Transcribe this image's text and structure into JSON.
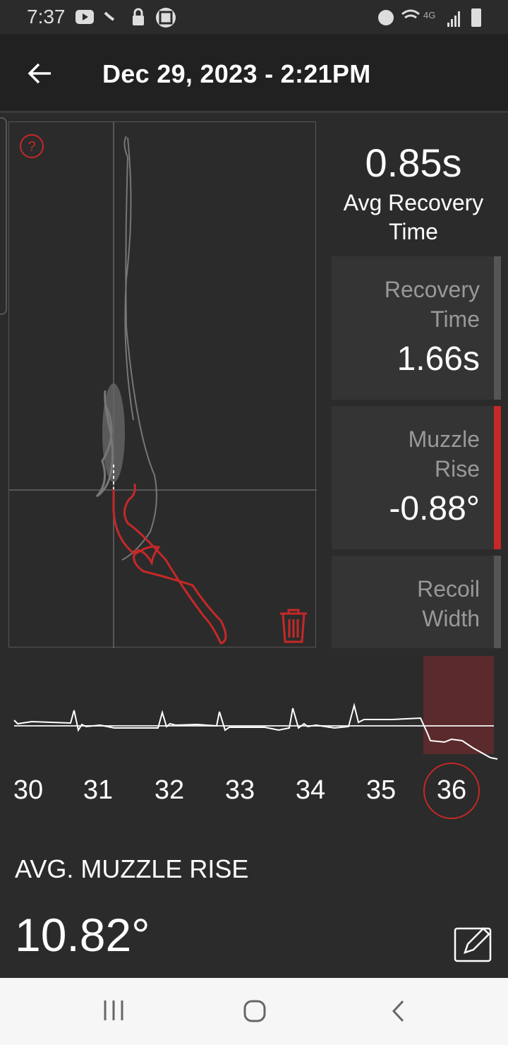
{
  "status_bar": {
    "time": "7:37",
    "icons": [
      "youtube-icon",
      "wifi-call-icon",
      "lock-icon",
      "screenshot-icon",
      "alarm-icon",
      "wifi-icon",
      "4g-lte-icon",
      "signal-icon",
      "battery-icon"
    ]
  },
  "header": {
    "title": "Dec 29, 2023 - 2:21PM",
    "back_icon": "arrow-left-icon"
  },
  "summary": {
    "avg_recovery_value": "0.85s",
    "avg_recovery_label": "Avg Recovery Time"
  },
  "cards": [
    {
      "label": "Recovery Time",
      "value": "1.66s",
      "selected": false
    },
    {
      "label": "Muzzle Rise",
      "value": "-0.88°",
      "selected": true
    },
    {
      "label": "Recoil Width",
      "value": "",
      "selected": false
    }
  ],
  "shots": {
    "labels": [
      "30",
      "31",
      "32",
      "33",
      "34",
      "35",
      "36"
    ],
    "selected": "36"
  },
  "footer": {
    "label": "AVG. MUZZLE RISE",
    "value": "10.82°"
  },
  "colors": {
    "accent": "#c62828",
    "highlight": "#5a2a2c",
    "background": "#2b2b2b"
  }
}
